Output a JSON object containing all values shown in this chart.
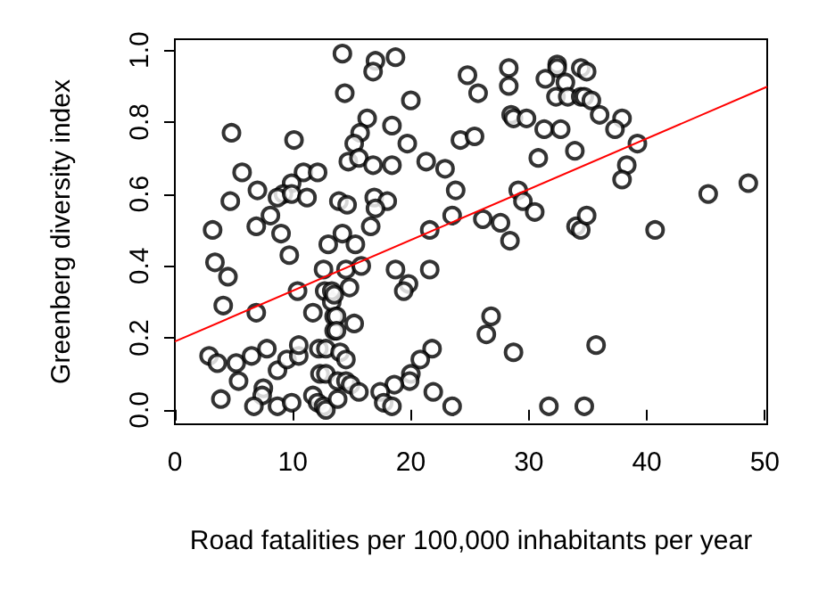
{
  "chart_data": {
    "type": "scatter",
    "xlabel": "Road fatalities per 100,000 inhabitants per year",
    "ylabel": "Greenberg diversity index",
    "xlim": [
      0,
      50.2
    ],
    "ylim": [
      -0.04,
      1.03
    ],
    "xticks": [
      0,
      10,
      20,
      30,
      40,
      50
    ],
    "yticks": [
      {
        "value": 0,
        "label": "0.0"
      },
      {
        "value": 0.2,
        "label": "0.2"
      },
      {
        "value": 0.4,
        "label": "0.4"
      },
      {
        "value": 0.6,
        "label": "0.6"
      },
      {
        "value": 0.8,
        "label": "0.8"
      },
      {
        "value": 1,
        "label": "1.0"
      }
    ],
    "series": [
      {
        "marker": "circle",
        "color": "#000000",
        "x": [
          4.8,
          10.1,
          5.7,
          7.0,
          4.7,
          10.9,
          12.1,
          9.9,
          9.2,
          8.7,
          9.9,
          11.2,
          3.2,
          6.9,
          8.1,
          9.0,
          9.7,
          3.4,
          4.5,
          4.1,
          6.9,
          10.4,
          11.7,
          12.6,
          12.7,
          13.0,
          2.9,
          3.6,
          5.2,
          6.5,
          7.8,
          8.7,
          9.5,
          10.5,
          10.5,
          5.4,
          3.9,
          7.5,
          7.4,
          6.7,
          8.7,
          9.9,
          11.7,
          12.1,
          12.6,
          12.8,
          12.3,
          12.8,
          12.2,
          12.8,
          13.5,
          13.5,
          13.3,
          13.3,
          14.2,
          17.0,
          16.8,
          18.7,
          14.4,
          20.0,
          24.8,
          25.7,
          16.3,
          15.7,
          15.2,
          14.7,
          15.6,
          16.8,
          18.4,
          19.7,
          18.4,
          21.3,
          22.9,
          24.2,
          25.4,
          23.8,
          23.5,
          26.1,
          21.6,
          13.9,
          14.6,
          16.9,
          18.0,
          17.0,
          16.6,
          14.2,
          15.3,
          14.5,
          15.8,
          18.7,
          19.8,
          19.4,
          21.6,
          14.8,
          13.5,
          13.7,
          13.7,
          15.2,
          26.8,
          26.4,
          14.0,
          14.5,
          21.8,
          20.8,
          20.0,
          19.9,
          18.6,
          17.4,
          17.7,
          18.4,
          21.9,
          23.5,
          13.8,
          14.5,
          14.9,
          15.6,
          13.8,
          28.3,
          28.3,
          32.4,
          32.4,
          31.4,
          33.1,
          34.4,
          34.9,
          32.3,
          33.3,
          34.4,
          34.7,
          35.3,
          36.0,
          37.9,
          37.3,
          28.5,
          28.7,
          29.8,
          31.3,
          32.7,
          33.9,
          30.8,
          39.2,
          38.3,
          37.9,
          29.1,
          29.5,
          30.5,
          27.6,
          28.4,
          34.0,
          34.4,
          34.9,
          40.7,
          45.2,
          48.6,
          28.7,
          35.7,
          31.7,
          34.7
        ],
        "values": [
          0.77,
          0.75,
          0.66,
          0.61,
          0.58,
          0.66,
          0.66,
          0.63,
          0.6,
          0.59,
          0.6,
          0.59,
          0.5,
          0.51,
          0.54,
          0.49,
          0.43,
          0.41,
          0.37,
          0.29,
          0.27,
          0.33,
          0.27,
          0.39,
          0.33,
          0.46,
          0.15,
          0.13,
          0.13,
          0.15,
          0.17,
          0.11,
          0.14,
          0.15,
          0.18,
          0.08,
          0.03,
          0.06,
          0.04,
          0.01,
          0.01,
          0.02,
          0.04,
          0.02,
          0.01,
          0.0,
          0.1,
          0.1,
          0.17,
          0.17,
          0.22,
          0.26,
          0.3,
          0.33,
          0.99,
          0.97,
          0.94,
          0.98,
          0.88,
          0.86,
          0.93,
          0.88,
          0.81,
          0.77,
          0.74,
          0.69,
          0.7,
          0.68,
          0.79,
          0.74,
          0.68,
          0.69,
          0.67,
          0.75,
          0.76,
          0.61,
          0.54,
          0.53,
          0.5,
          0.58,
          0.57,
          0.59,
          0.58,
          0.56,
          0.51,
          0.49,
          0.46,
          0.39,
          0.4,
          0.39,
          0.35,
          0.33,
          0.39,
          0.34,
          0.32,
          0.26,
          0.22,
          0.24,
          0.26,
          0.21,
          0.16,
          0.14,
          0.17,
          0.14,
          0.1,
          0.08,
          0.07,
          0.05,
          0.02,
          0.01,
          0.05,
          0.01,
          0.08,
          0.08,
          0.07,
          0.05,
          0.03,
          0.95,
          0.9,
          0.96,
          0.95,
          0.92,
          0.91,
          0.95,
          0.94,
          0.87,
          0.87,
          0.87,
          0.87,
          0.86,
          0.82,
          0.81,
          0.78,
          0.82,
          0.81,
          0.81,
          0.78,
          0.78,
          0.72,
          0.7,
          0.74,
          0.68,
          0.64,
          0.61,
          0.58,
          0.55,
          0.52,
          0.47,
          0.51,
          0.5,
          0.54,
          0.5,
          0.6,
          0.63,
          0.16,
          0.18,
          0.01,
          0.01
        ]
      },
      {
        "type": "line",
        "color": "#ff0000",
        "x": [
          0,
          50.2
        ],
        "values": [
          0.19,
          0.898
        ]
      }
    ]
  }
}
